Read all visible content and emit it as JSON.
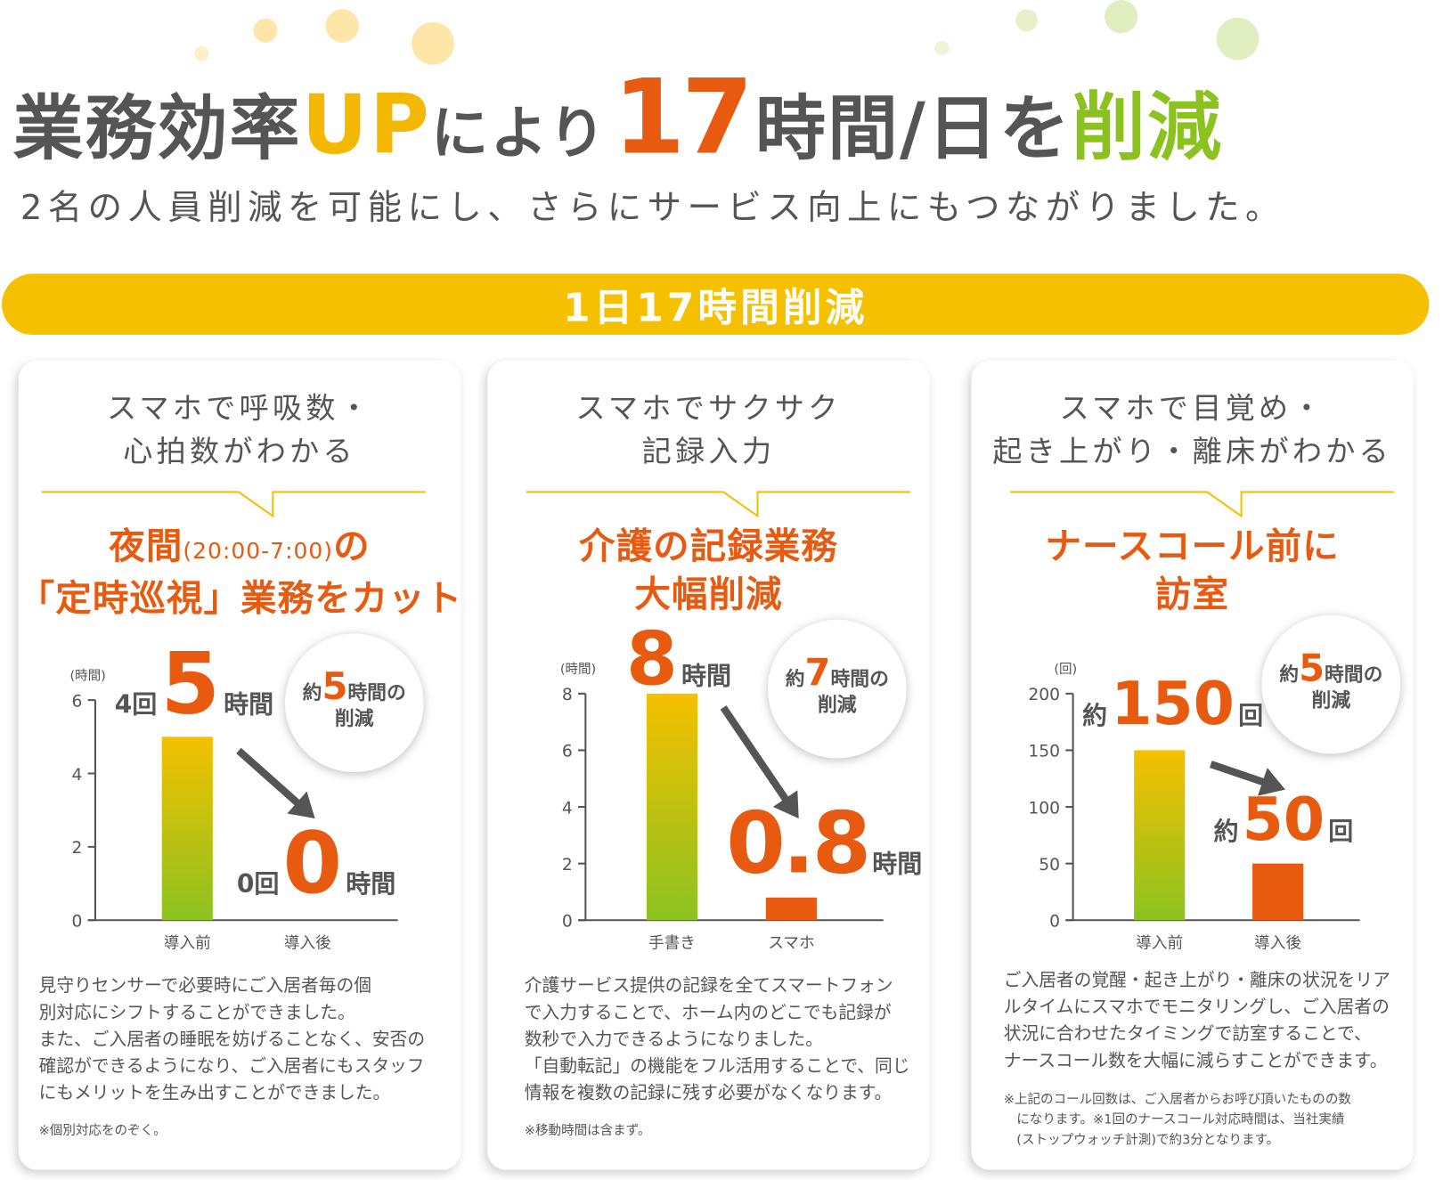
{
  "colors": {
    "orange": "#e85a10",
    "yellow": "#f5c000",
    "green": "#8cc220",
    "text": "#555555"
  },
  "headline": {
    "part1": "業務効率",
    "up": "UP",
    "part2": "により",
    "number": "17",
    "part3": "時間/日を",
    "part4": "削減"
  },
  "subtitle": "2名の人員削減を可能にし、さらにサービス向上にもつながりました。",
  "banner": "1日17時間削減",
  "cards": [
    {
      "heading1": "スマホで呼吸数・",
      "heading2": "心拍数がわかる",
      "orange1": "夜間",
      "orange1_small": "(20:00-7:00)",
      "orange1_end": "の",
      "orange2": "「定時巡視」業務をカット",
      "before_prefix": "4回",
      "before_value": "5",
      "before_unit": "時間",
      "after_prefix": "0回",
      "after_value": "0",
      "after_unit": "時間",
      "bubble_prefix": "約",
      "bubble_value": "5",
      "bubble_unit": "時間の",
      "bubble_line2": "削減",
      "desc": [
        "見守りセンサーで必要時にご入居者毎の個",
        "別対応にシフトすることができました。",
        "また、ご入居者の睡眠を妨げることなく、安否の",
        "確認ができるようになり、ご入居者にもスタッフ",
        "にもメリットを生み出すことができました。"
      ],
      "note": [
        "※個別対応をのぞく。"
      ]
    },
    {
      "heading1": "スマホでサクサク",
      "heading2": "記録入力",
      "orange1": "介護の記録業務",
      "orange2": "大幅削減",
      "before_value": "8",
      "before_unit": "時間",
      "after_value": "0.8",
      "after_unit": "時間",
      "bubble_prefix": "約",
      "bubble_value": "7",
      "bubble_unit": "時間の",
      "bubble_line2": "削減",
      "desc": [
        "介護サービス提供の記録を全てスマートフォン",
        "で入力することで、ホーム内のどこでも記録が",
        "数秒で入力できるようになりました。",
        "「自動転記」の機能をフル活用することで、同じ",
        "情報を複数の記録に残す必要がなくなります。"
      ],
      "note": [
        "※移動時間は含まず。"
      ]
    },
    {
      "heading1": "スマホで目覚め・",
      "heading2": "起き上がり・離床がわかる",
      "orange1": "ナースコール前に",
      "orange2": "訪室",
      "before_prefix": "約",
      "before_value": "150",
      "before_unit": "回",
      "after_prefix": "約",
      "after_value": "50",
      "after_unit": "回",
      "bubble_prefix": "約",
      "bubble_value": "5",
      "bubble_unit": "時間の",
      "bubble_line2": "削減",
      "desc": [
        "ご入居者の覚醒・起き上がり・離床の状況をリア",
        "ルタイムにスマホでモニタリングし、ご入居者の",
        "状況に合わせたタイミングで訪室することで、",
        "ナースコール数を大幅に減らすことができます。"
      ],
      "note": [
        "※上記のコール回数は、ご入居者からお呼び頂いたものの数",
        "　になります。※1回のナースコール対応時間は、当社実績",
        "　(ストップウォッチ計測)で約3分となります。"
      ]
    }
  ],
  "chart_data": [
    {
      "type": "bar",
      "unit_label": "(時間)",
      "categories": [
        "導入前",
        "導入後"
      ],
      "values": [
        5,
        0
      ],
      "ylim": [
        0,
        6
      ],
      "ticks": [
        0,
        2,
        4,
        6
      ]
    },
    {
      "type": "bar",
      "unit_label": "(時間)",
      "categories": [
        "手書き",
        "スマホ"
      ],
      "values": [
        8,
        0.8
      ],
      "ylim": [
        0,
        8
      ],
      "ticks": [
        0,
        2,
        4,
        6,
        8
      ]
    },
    {
      "type": "bar",
      "unit_label": "(回)",
      "categories": [
        "導入前",
        "導入後"
      ],
      "values": [
        150,
        50
      ],
      "ylim": [
        0,
        200
      ],
      "ticks": [
        0,
        50,
        100,
        150,
        200
      ]
    }
  ]
}
